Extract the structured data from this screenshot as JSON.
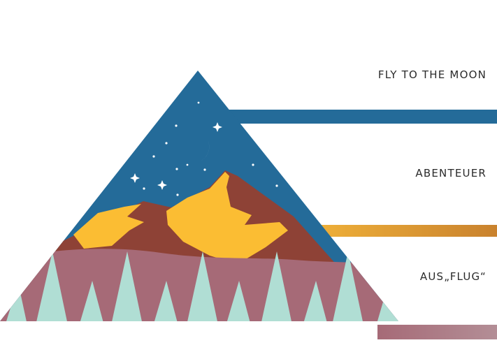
{
  "layers": [
    {
      "label": "FLY TO THE MOON",
      "color": "#246b99"
    },
    {
      "label": "ABENTEUER",
      "color": "#d3902e"
    },
    {
      "label": "AUS„FLUG“",
      "color": "#a77580"
    }
  ],
  "colors": {
    "sky": "#246b99",
    "mountain": "#8e4236",
    "peak_highlight": "#fbbd33",
    "hills": "#a66a77",
    "trees": "#b0ded4",
    "moon": "#ffffff",
    "stars": "#ffffff"
  }
}
